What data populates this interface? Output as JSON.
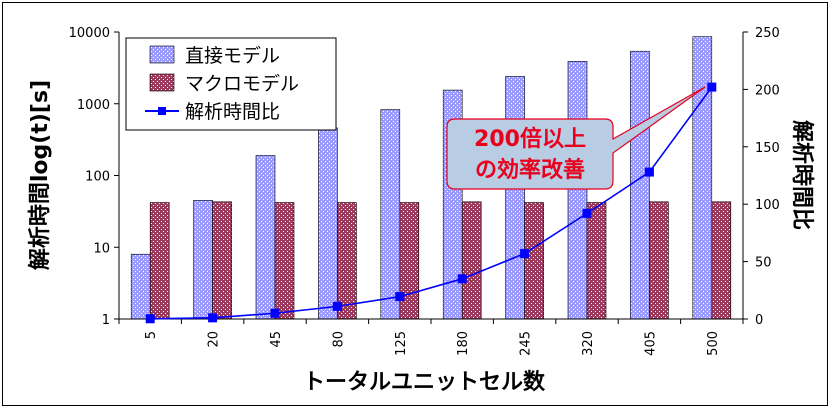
{
  "chart_data": {
    "type": "bar",
    "categories": [
      "5",
      "20",
      "45",
      "80",
      "125",
      "180",
      "245",
      "320",
      "405",
      "500"
    ],
    "series": [
      {
        "name": "直接モデル",
        "type": "bar",
        "axis": "left",
        "color": "#9999ff",
        "values": [
          8,
          45,
          190,
          460,
          830,
          1550,
          2400,
          3900,
          5400,
          8600
        ]
      },
      {
        "name": "マクロモデル",
        "type": "bar",
        "axis": "left",
        "color": "#993366",
        "values": [
          42,
          43,
          42,
          42,
          42,
          43,
          42,
          42,
          43,
          43
        ]
      },
      {
        "name": "解析時間比",
        "type": "line",
        "axis": "right",
        "color": "#0000ff",
        "marker": "square",
        "values": [
          0.2,
          1,
          5,
          11,
          19.5,
          35,
          57,
          92,
          128,
          202
        ]
      }
    ],
    "xlabel": "トータルユニットセル数",
    "ylabel": "解析時間log(t)[s]",
    "y2label": "解析時間比",
    "y_scale": "log",
    "ylim": [
      1,
      10000
    ],
    "y_ticks": [
      "1",
      "10",
      "100",
      "1000",
      "10000"
    ],
    "y2lim": [
      0,
      250
    ],
    "y2_ticks": [
      "0",
      "50",
      "100",
      "150",
      "200",
      "250"
    ],
    "grid": false,
    "legend_position": "top-left",
    "annotation": {
      "lines": [
        "200倍以上",
        "の効率改善"
      ],
      "fill": "#b8cce4",
      "text_color": "#e8001c"
    }
  }
}
